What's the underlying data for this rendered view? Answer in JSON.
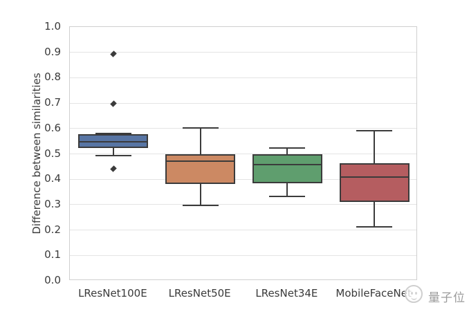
{
  "figure": {
    "background": "#ffffff",
    "watermark": {
      "icon": "qbitai-ghost-icon",
      "text": "量子位",
      "color": "#9b9b9b"
    }
  },
  "colors": {
    "box_edge": "#3b3b3b",
    "gridline": "#e4e4e4",
    "spine": "#cfcfcf",
    "tick_text": "#3a3a3a"
  },
  "chart_data": {
    "type": "box",
    "title": "",
    "xlabel": "",
    "ylabel": "Difference between similarities",
    "ylim": [
      0.0,
      1.0
    ],
    "ytick_labels": [
      "1.0",
      "0.9",
      "0.8",
      "0.7",
      "0.6",
      "0.5",
      "0.4",
      "0.3",
      "0.2",
      "0.1",
      "0.0"
    ],
    "grid": "horizontal",
    "legend": false,
    "categories": [
      "LResNet100E",
      "LResNet50E",
      "LResNet34E",
      "MobileFaceNet"
    ],
    "series": [
      {
        "name": "LResNet100E",
        "color": "#5875a4",
        "whisker_low": 0.492,
        "q1": 0.524,
        "median": 0.547,
        "q3": 0.577,
        "whisker_high": 0.58,
        "outliers": [
          0.438,
          0.695,
          0.89
        ]
      },
      {
        "name": "LResNet50E",
        "color": "#cc8963",
        "whisker_low": 0.298,
        "q1": 0.382,
        "median": 0.471,
        "q3": 0.5,
        "whisker_high": 0.603,
        "outliers": []
      },
      {
        "name": "LResNet34E",
        "color": "#5f9e6e",
        "whisker_low": 0.332,
        "q1": 0.383,
        "median": 0.457,
        "q3": 0.5,
        "whisker_high": 0.522,
        "outliers": []
      },
      {
        "name": "MobileFaceNet",
        "color": "#b55d60",
        "whisker_low": 0.213,
        "q1": 0.311,
        "median": 0.409,
        "q3": 0.463,
        "whisker_high": 0.59,
        "outliers": []
      }
    ]
  }
}
